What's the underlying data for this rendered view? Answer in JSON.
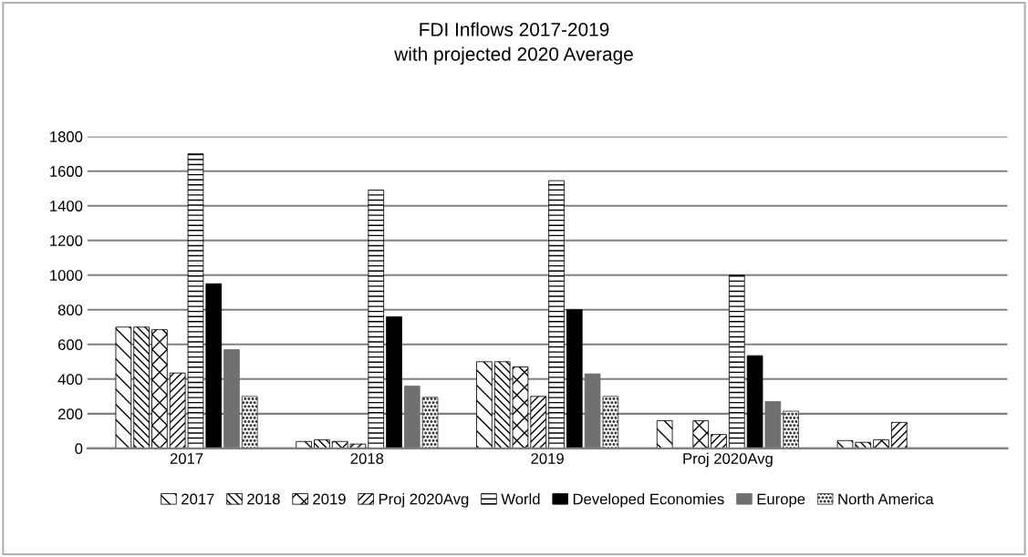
{
  "chart_data": {
    "type": "bar",
    "title": "FDI Inflows 2017-2019\nwith projected 2020 Average",
    "categories": [
      "2017",
      "2018",
      "2019",
      "Proj 2020Avg",
      null
    ],
    "series": [
      {
        "name": "2017",
        "color": "#000000",
        "values": [
          700,
          40,
          500,
          160,
          45
        ]
      },
      {
        "name": "2018",
        "color": "#000000",
        "values": [
          700,
          50,
          500,
          0,
          35
        ]
      },
      {
        "name": "2019",
        "color": "#000000",
        "values": [
          685,
          40,
          470,
          160,
          50
        ]
      },
      {
        "name": "Proj 2020Avg",
        "color": "#000000",
        "values": [
          435,
          25,
          300,
          80,
          150
        ]
      },
      {
        "name": "World",
        "color": "#000000",
        "values": [
          1700,
          1490,
          1545,
          1000,
          null
        ]
      },
      {
        "name": "Developed Economies",
        "color": "#000000",
        "values": [
          950,
          760,
          800,
          535,
          null
        ]
      },
      {
        "name": "Europe",
        "color": "#707070",
        "values": [
          570,
          360,
          430,
          270,
          null
        ]
      },
      {
        "name": "North America",
        "color": "#404040",
        "values": [
          300,
          295,
          300,
          215,
          null
        ]
      }
    ],
    "ylim": [
      0,
      1800
    ],
    "yticks": [
      0,
      200,
      400,
      600,
      800,
      1000,
      1200,
      1400,
      1600,
      1800
    ],
    "grid": "y",
    "legend": "bottom"
  }
}
